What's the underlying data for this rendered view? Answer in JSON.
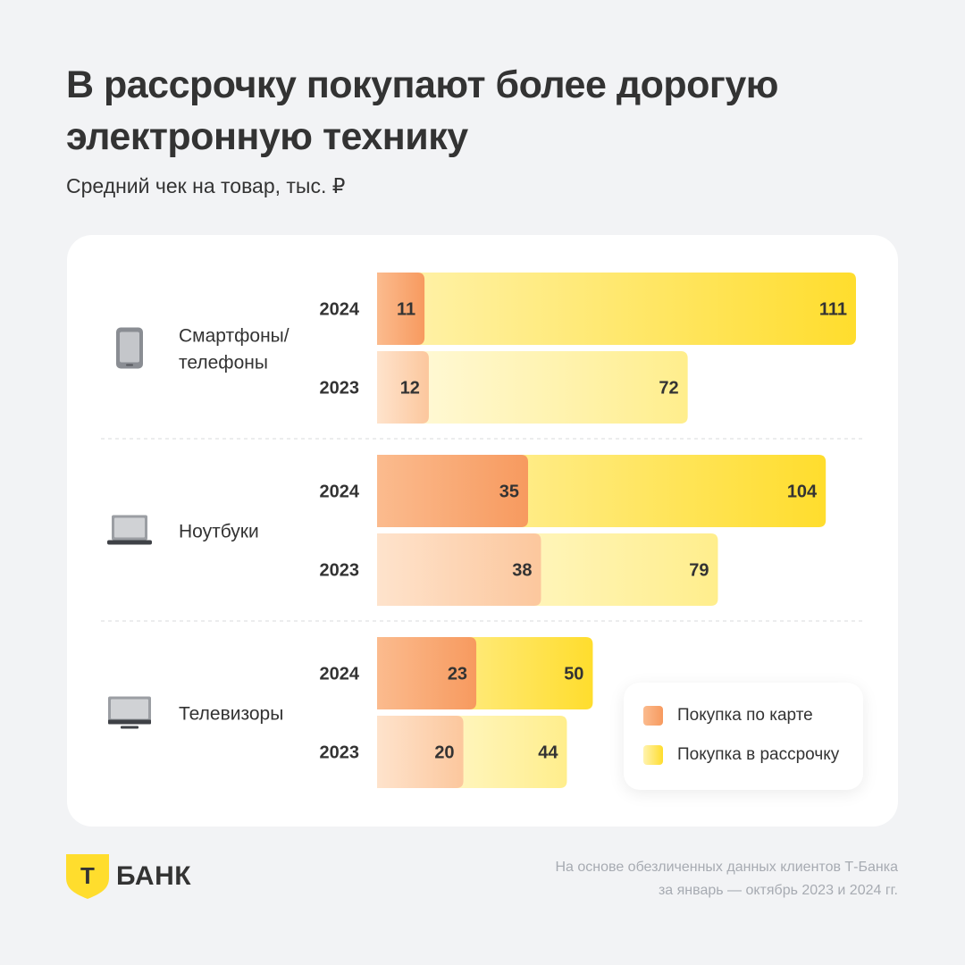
{
  "title_line1": "В рассрочку покупают более дорогую",
  "title_line2": "электронную технику",
  "subtitle": "Средний чек на товар, тыс. ₽",
  "legend": {
    "card": "Покупка по карте",
    "installment": "Покупка в рассрочку"
  },
  "logo": {
    "letter": "Т",
    "text": "БАНК"
  },
  "footnote": {
    "line1": "На основе обезличенных данных клиентов Т-Банка",
    "line2": "за январь — октябрь 2023 и 2024 гг."
  },
  "colors": {
    "card_2024_from": "#fbbb8e",
    "card_2024_to": "#f79a5f",
    "card_2023_from": "#fee3cc",
    "card_2023_to": "#fcc79d",
    "inst_2024_from": "#fff3b0",
    "inst_2024_to": "#ffdd2d",
    "inst_2023_from": "#fffae0",
    "inst_2023_to": "#ffee8c",
    "text": "#333333",
    "logo_yellow": "#ffdd2d"
  },
  "chart_data": {
    "type": "bar",
    "orientation": "horizontal",
    "stacking": "overlapping",
    "legend_position": "bottom-right",
    "categories": [
      {
        "label_lines": [
          "Смартфоны/",
          "телефоны"
        ],
        "icon": "smartphone-icon"
      },
      {
        "label_lines": [
          "Ноутбуки"
        ],
        "icon": "laptop-icon"
      },
      {
        "label_lines": [
          "Телевизоры"
        ],
        "icon": "tv-icon"
      }
    ],
    "years": [
      "2024",
      "2023"
    ],
    "series": [
      {
        "name": "Покупка по карте",
        "values": [
          [
            11,
            12
          ],
          [
            35,
            38
          ],
          [
            23,
            20
          ]
        ]
      },
      {
        "name": "Покупка в рассрочку",
        "values": [
          [
            111,
            72
          ],
          [
            104,
            79
          ],
          [
            50,
            44
          ]
        ]
      }
    ],
    "xlim": [
      0,
      111
    ]
  }
}
